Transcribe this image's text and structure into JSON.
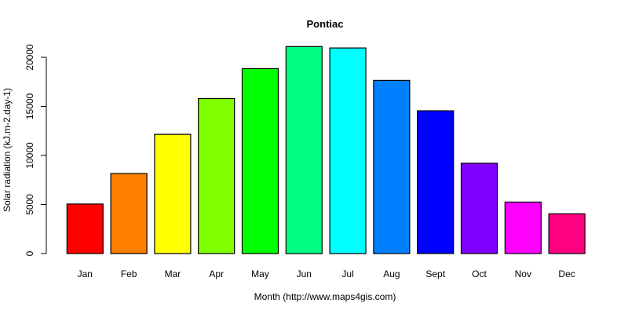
{
  "chart_data": {
    "type": "bar",
    "title": "Pontiac",
    "xlabel": "Month (http://www.maps4gis.com)",
    "ylabel": "Solar radiation (kJ.m-2.day-1)",
    "categories": [
      "Jan",
      "Feb",
      "Mar",
      "Apr",
      "May",
      "Jun",
      "Jul",
      "Aug",
      "Sept",
      "Oct",
      "Nov",
      "Dec"
    ],
    "values": [
      5050,
      8150,
      12150,
      15800,
      18850,
      21100,
      20950,
      17650,
      14550,
      9200,
      5250,
      4050
    ],
    "colors": [
      "#FF0000",
      "#FF8000",
      "#FFFF00",
      "#80FF00",
      "#00FF00",
      "#00FF80",
      "#00FFFF",
      "#0080FF",
      "#0000FF",
      "#8000FF",
      "#FF00FF",
      "#FF0080"
    ],
    "yticks": [
      0,
      5000,
      10000,
      15000,
      20000
    ],
    "ylim": [
      0,
      21100
    ],
    "grid": false,
    "legend": null
  }
}
